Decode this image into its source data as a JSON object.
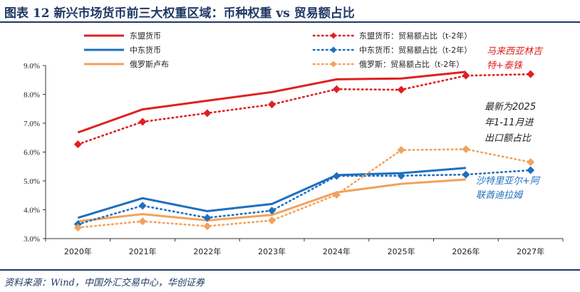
{
  "title": "图表 12   新兴市场货币前三大权重区域：币种权重 vs 贸易额占比",
  "source": "资料来源：Wind，中国外汇交易中心，华创证券",
  "chart_data": {
    "type": "line",
    "categories": [
      "2020年",
      "2021年",
      "2022年",
      "2023年",
      "2024年",
      "2025年",
      "2026年",
      "2027年"
    ],
    "ylim": [
      3.0,
      9.0
    ],
    "yticks": [
      "3.0%",
      "4.0%",
      "5.0%",
      "6.0%",
      "7.0%",
      "8.0%",
      "9.0%"
    ],
    "series": [
      {
        "name": "东盟货币",
        "color": "#e02020",
        "style": "solid",
        "values": [
          6.68,
          7.48,
          7.78,
          8.08,
          8.52,
          8.55,
          8.78,
          null
        ]
      },
      {
        "name": "中东货币",
        "color": "#1f6fbf",
        "style": "solid",
        "values": [
          3.72,
          4.4,
          3.95,
          4.2,
          5.2,
          5.27,
          5.45,
          null
        ]
      },
      {
        "name": "俄罗斯卢布",
        "color": "#f2a25b",
        "style": "solid",
        "values": [
          3.6,
          3.85,
          3.63,
          3.82,
          4.6,
          4.9,
          5.05,
          null
        ]
      },
      {
        "name": "东盟货币：贸易额占比（t-2年）",
        "color": "#e02020",
        "style": "dotted",
        "values": [
          6.27,
          7.05,
          7.35,
          7.65,
          8.18,
          8.16,
          8.65,
          8.7
        ]
      },
      {
        "name": "中东货币：贸易额占比（t-2年）",
        "color": "#1f6fbf",
        "style": "dotted",
        "values": [
          3.5,
          4.14,
          3.72,
          3.97,
          5.17,
          5.18,
          5.22,
          5.37
        ]
      },
      {
        "name": "俄罗斯：贸易额占比（t-2年）",
        "color": "#f2a25b",
        "style": "dotted",
        "values": [
          3.38,
          3.6,
          3.43,
          3.63,
          4.52,
          6.07,
          6.1,
          5.65
        ]
      }
    ],
    "annotations": {
      "asean": [
        "马来西亚林吉",
        "特+泰铢"
      ],
      "latest": [
        "最新为2025",
        "年1-11月进",
        "出口额占比"
      ],
      "mideast": [
        "沙特里亚尔+阿",
        "联酋迪拉姆"
      ]
    }
  }
}
